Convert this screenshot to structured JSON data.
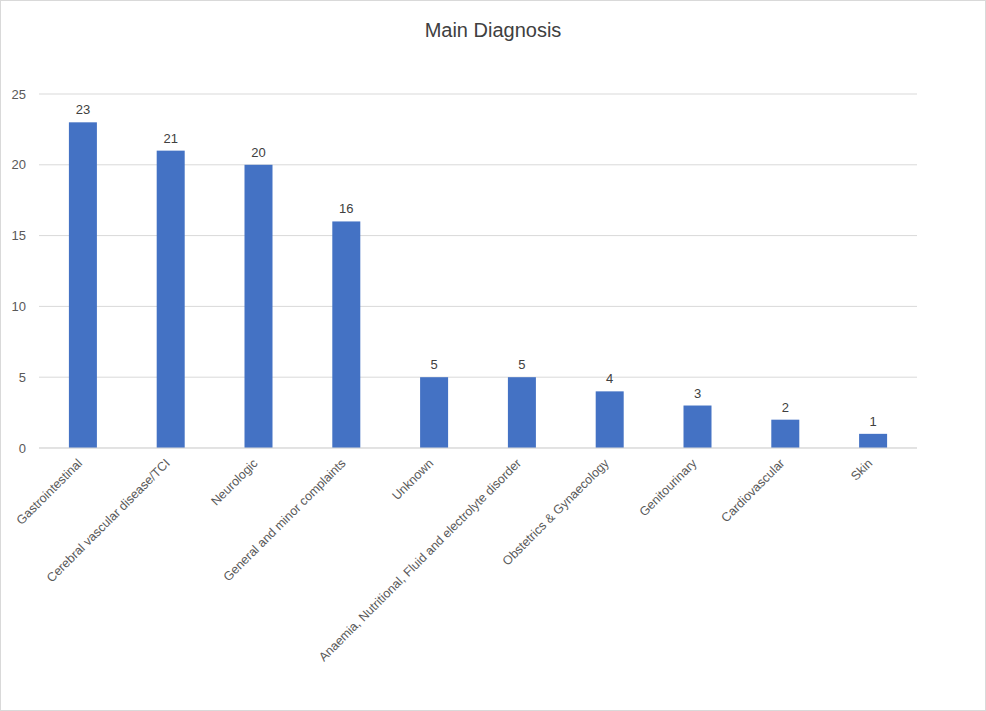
{
  "chart_data": {
    "type": "bar",
    "title": "Main Diagnosis",
    "categories": [
      "Gastrointestinal",
      "Cerebral vascular disease/TCI",
      "Neurologic",
      "General and minor complaints",
      "Unknown",
      "Anaemia, Nutritional, Fluid and electrolyte disorder",
      "Obstetrics & Gynaecology",
      "Genitourinary",
      "Cardiovascular",
      "Skin"
    ],
    "values": [
      23,
      21,
      20,
      16,
      5,
      5,
      4,
      3,
      2,
      1
    ],
    "color": "#4472c4",
    "ylim": [
      0,
      25
    ],
    "yticks": [
      0,
      5,
      10,
      15,
      20,
      25
    ],
    "grid": true,
    "data_labels": true
  }
}
